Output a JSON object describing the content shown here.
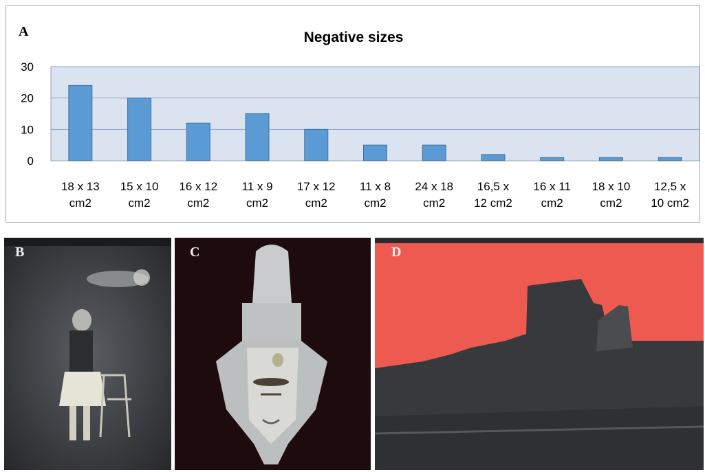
{
  "panels": {
    "a": "A",
    "b": "B",
    "c": "C",
    "d": "D"
  },
  "chart_data": {
    "type": "bar",
    "title": "Negative sizes",
    "categories": [
      [
        "18 x 13",
        "cm2"
      ],
      [
        "15 x 10",
        "cm2"
      ],
      [
        "16 x 12",
        "cm2"
      ],
      [
        "11 x 9",
        "cm2"
      ],
      [
        "17 x 12",
        "cm2"
      ],
      [
        "11 x 8",
        "cm2"
      ],
      [
        "24 x 18",
        "cm2"
      ],
      [
        "16,5  x",
        "12 cm2"
      ],
      [
        "16 x 11",
        "cm2"
      ],
      [
        "18 x 10",
        "cm2"
      ],
      [
        "12,5 x",
        "10 cm2"
      ]
    ],
    "values": [
      24,
      20,
      12,
      15,
      10,
      5,
      5,
      2,
      1,
      1,
      1
    ],
    "ylim": [
      0,
      30
    ],
    "yticks": [
      0,
      10,
      20,
      30
    ],
    "grid": true,
    "colors": {
      "bar": "#5b9bd5",
      "bar_edge": "#41719c",
      "plot_bg": "#dbe3f0",
      "grid": "#8ea3c2"
    }
  },
  "photos": {
    "b": {
      "colors": {
        "base": "#3a3d43",
        "light": "#dedfd9"
      }
    },
    "c": {
      "colors": {
        "base": "#1d0a0c",
        "light": "#c8c9c9"
      }
    },
    "d": {
      "colors": {
        "sky": "#ef5a4e",
        "ruin": "#35373b"
      }
    }
  }
}
